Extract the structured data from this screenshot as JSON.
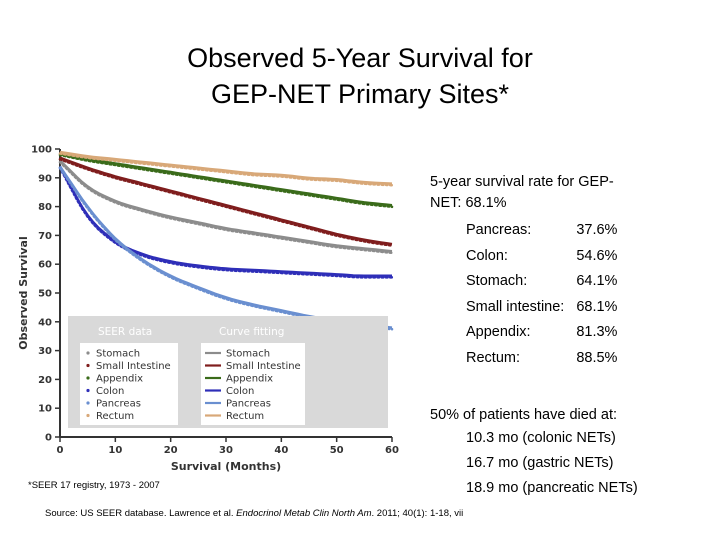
{
  "title_lines": [
    "Observed 5-Year Survival for",
    "GEP-NET Primary Sites*"
  ],
  "summary": {
    "heading_line1": "5-year survival rate for GEP-",
    "heading_line2": "NET: 68.1%",
    "sites": [
      {
        "name": "Pancreas:",
        "rate": "37.6%"
      },
      {
        "name": "Colon:",
        "rate": "54.6%"
      },
      {
        "name": "Stomach:",
        "rate": "64.1%"
      },
      {
        "name": "Small intestine:",
        "rate": "68.1%"
      },
      {
        "name": "Appendix:",
        "rate": "81.3%"
      },
      {
        "name": "Rectum:",
        "rate": "88.5%"
      }
    ]
  },
  "died": {
    "heading": "50% of patients have died at:",
    "items": [
      "10.3 mo (colonic NETs)",
      "16.7 mo (gastric NETs)",
      "18.9 mo (pancreatic NETs)"
    ]
  },
  "footnote": "*SEER 17 registry, 1973 - 2007",
  "source": {
    "prefix": "Source: US SEER database. Lawrence et al. ",
    "journal": "Endocrinol Metab Clin North Am",
    "suffix": ". 2011; 40(1): 1-18, vii"
  },
  "chart_data": {
    "type": "line",
    "xlabel": "Survival (Months)",
    "ylabel": "Observed Survival",
    "xlim": [
      0,
      60
    ],
    "ylim": [
      0,
      100
    ],
    "xticks": [
      0,
      10,
      20,
      30,
      40,
      50,
      60
    ],
    "yticks": [
      0,
      10,
      20,
      30,
      40,
      50,
      60,
      70,
      80,
      90,
      100
    ],
    "grid": false,
    "legend_placement": "bottom-left",
    "legend_groups": [
      {
        "title": "SEER data",
        "style": "dotted"
      },
      {
        "title": "Curve fitting",
        "style": "solid"
      }
    ],
    "x": [
      0,
      5,
      10,
      15,
      20,
      25,
      30,
      35,
      40,
      45,
      50,
      55,
      60
    ],
    "series": [
      {
        "name": "Stomach",
        "color": "#8c8c8c",
        "values": [
          96,
          87,
          82,
          79,
          76.5,
          74.5,
          72.5,
          71,
          69.5,
          68,
          66.5,
          65.5,
          64.5
        ]
      },
      {
        "name": "Small Intestine",
        "color": "#7f1d1d",
        "values": [
          97,
          93.5,
          90.5,
          88,
          85.5,
          83,
          80.5,
          78,
          75.5,
          73,
          70.5,
          68.5,
          67
        ]
      },
      {
        "name": "Appendix",
        "color": "#3a6b1a",
        "values": [
          98.5,
          96.5,
          95,
          93.5,
          92,
          90.5,
          89,
          87.5,
          86,
          84.5,
          83,
          81.5,
          80.5
        ]
      },
      {
        "name": "Colon",
        "color": "#2e2eb8",
        "values": [
          94,
          77,
          68,
          63.5,
          61,
          59.5,
          58.5,
          58,
          57.5,
          57,
          56.5,
          56,
          56
        ]
      },
      {
        "name": "Pancreas",
        "color": "#6a8fd0",
        "values": [
          94,
          80,
          69,
          61.5,
          56,
          52,
          48.5,
          46,
          44,
          42,
          40.5,
          39,
          38
        ]
      },
      {
        "name": "Rectum",
        "color": "#d8a878",
        "values": [
          99,
          97.5,
          96.5,
          95.5,
          94.5,
          93.5,
          92.5,
          91.5,
          91,
          90,
          89.5,
          88.5,
          88
        ]
      }
    ]
  }
}
